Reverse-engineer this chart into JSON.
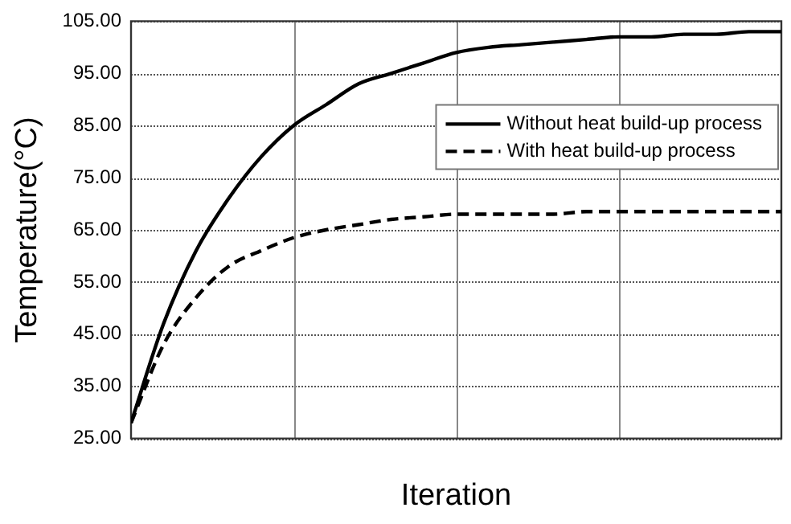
{
  "chart_data": {
    "type": "line",
    "xlabel": "Iteration",
    "ylabel": "Temperature(°C)",
    "categories": [
      null,
      null,
      null,
      null,
      null,
      null,
      null,
      null,
      null,
      null,
      null,
      null,
      null,
      null,
      null,
      null,
      null,
      null,
      null,
      null,
      null
    ],
    "series": [
      {
        "name": "Without heat build-up process",
        "color": "#000000",
        "line_style": "solid",
        "values": [
          28,
          47,
          61,
          71,
          79,
          85,
          89,
          93,
          95,
          97,
          99,
          100,
          100.5,
          101,
          101.5,
          102,
          102,
          102.5,
          102.5,
          103,
          103
        ]
      },
      {
        "name": "With heat build-up process",
        "color": "#000000",
        "line_style": "dashed",
        "values": [
          28,
          43,
          52,
          58,
          61,
          63.5,
          65,
          66,
          67,
          67.5,
          68,
          68,
          68,
          68,
          68.5,
          68.5,
          68.5,
          68.5,
          68.5,
          68.5,
          68.5
        ]
      }
    ],
    "ylim": [
      25,
      105
    ],
    "yticks": [
      {
        "value": 25,
        "label": "25.00"
      },
      {
        "value": 35,
        "label": "35.00"
      },
      {
        "value": 45,
        "label": "45.00"
      },
      {
        "value": 55,
        "label": "55.00"
      },
      {
        "value": 65,
        "label": "65.00"
      },
      {
        "value": 75,
        "label": "75.00"
      },
      {
        "value": 85,
        "label": "85.00"
      },
      {
        "value": 95,
        "label": "95.00"
      },
      {
        "value": 105,
        "label": "105.00"
      }
    ],
    "grid": true,
    "legend": "top right",
    "marker": "none"
  }
}
